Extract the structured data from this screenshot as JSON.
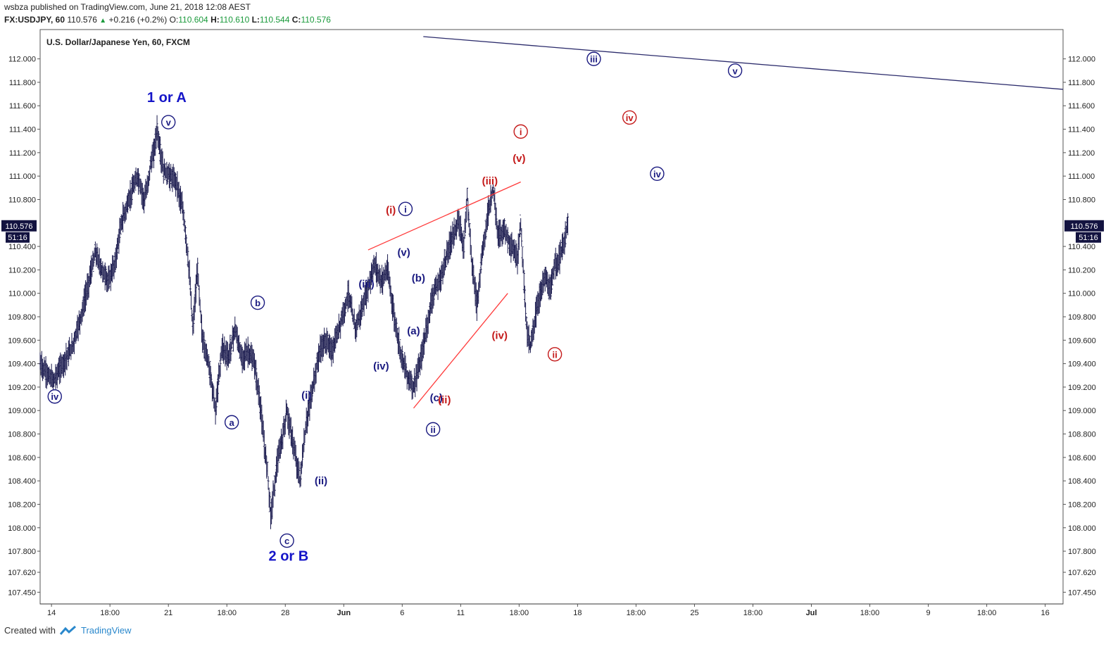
{
  "header": {
    "published": "wsbza published on TradingView.com, June 21, 2018 12:08 AEST",
    "symbol": "FX:USDJPY, 60",
    "last": "110.576",
    "change": "+0.216 (+0.2%)",
    "o_label": "O:",
    "o_val": "110.604",
    "h_label": "H:",
    "h_val": "110.610",
    "l_label": "L:",
    "l_val": "110.544",
    "c_label": "C:",
    "c_val": "110.576"
  },
  "footer": {
    "created_with": "Created with",
    "brand": "TradingView"
  },
  "colors": {
    "candle": "#1a1a4e",
    "blue_label": "#1515c8",
    "dark_label": "#1a1a80",
    "red_label": "#c41a1a",
    "red_line": "#ff3b3b",
    "navy_line": "#2b2b6b",
    "price_tag": "#131340"
  },
  "chart_data": {
    "type": "line",
    "title": "U.S. Dollar/Japanese Yen, 60, FXCM",
    "ylim": [
      107.35,
      112.25
    ],
    "y_ticks": [
      "112.000",
      "111.800",
      "111.600",
      "111.400",
      "111.200",
      "111.000",
      "110.800",
      "110.400",
      "110.200",
      "110.000",
      "109.800",
      "109.600",
      "109.400",
      "109.200",
      "109.000",
      "108.800",
      "108.600",
      "108.400",
      "108.200",
      "108.000",
      "107.800",
      "107.620",
      "107.450"
    ],
    "x_ticks": [
      "14",
      "18:00",
      "21",
      "18:00",
      "28",
      "Jun",
      "6",
      "11",
      "18:00",
      "18",
      "18:00",
      "25",
      "18:00",
      "Jul",
      "18:00",
      "9",
      "18:00",
      "16"
    ],
    "x_tick_index": [
      7,
      43,
      79,
      115,
      151,
      187,
      223,
      259,
      295,
      331,
      367,
      403,
      439,
      475,
      511,
      547,
      583,
      619
    ],
    "x_max": 630,
    "last_price": "110.576",
    "countdown": "51:16",
    "series": [
      {
        "points": [
          [
            0,
            109.4
          ],
          [
            5,
            109.3
          ],
          [
            8,
            109.25
          ],
          [
            14,
            109.4
          ],
          [
            20,
            109.55
          ],
          [
            26,
            109.85
          ],
          [
            30,
            110.1
          ],
          [
            34,
            110.35
          ],
          [
            38,
            110.2
          ],
          [
            42,
            110.1
          ],
          [
            46,
            110.25
          ],
          [
            50,
            110.6
          ],
          [
            56,
            110.85
          ],
          [
            60,
            111.0
          ],
          [
            64,
            110.8
          ],
          [
            66,
            110.9
          ],
          [
            68,
            111.1
          ],
          [
            70,
            111.2
          ],
          [
            72,
            111.4
          ],
          [
            74,
            111.2
          ],
          [
            76,
            111.05
          ],
          [
            80,
            111.0
          ],
          [
            84,
            110.95
          ],
          [
            88,
            110.7
          ],
          [
            90,
            110.45
          ],
          [
            92,
            110.15
          ],
          [
            94,
            109.7
          ],
          [
            97,
            110.2
          ],
          [
            100,
            109.6
          ],
          [
            104,
            109.4
          ],
          [
            108,
            109.0
          ],
          [
            112,
            109.55
          ],
          [
            116,
            109.45
          ],
          [
            120,
            109.7
          ],
          [
            124,
            109.45
          ],
          [
            128,
            109.5
          ],
          [
            132,
            109.4
          ],
          [
            136,
            109.0
          ],
          [
            138,
            108.7
          ],
          [
            140,
            108.5
          ],
          [
            142,
            108.1
          ],
          [
            146,
            108.55
          ],
          [
            149,
            108.75
          ],
          [
            152,
            109.0
          ],
          [
            156,
            108.7
          ],
          [
            160,
            108.4
          ],
          [
            164,
            108.9
          ],
          [
            168,
            109.2
          ],
          [
            172,
            109.5
          ],
          [
            176,
            109.6
          ],
          [
            180,
            109.5
          ],
          [
            186,
            109.8
          ],
          [
            190,
            110.0
          ],
          [
            194,
            109.7
          ],
          [
            198,
            109.85
          ],
          [
            202,
            110.05
          ],
          [
            206,
            110.25
          ],
          [
            210,
            110.1
          ],
          [
            214,
            110.2
          ],
          [
            218,
            109.8
          ],
          [
            222,
            109.5
          ],
          [
            226,
            109.3
          ],
          [
            230,
            109.2
          ],
          [
            234,
            109.4
          ],
          [
            238,
            109.7
          ],
          [
            242,
            110.0
          ],
          [
            246,
            110.1
          ],
          [
            250,
            110.3
          ],
          [
            254,
            110.5
          ],
          [
            258,
            110.6
          ],
          [
            261,
            110.4
          ],
          [
            263,
            110.85
          ],
          [
            266,
            110.25
          ],
          [
            269,
            109.9
          ],
          [
            272,
            110.3
          ],
          [
            276,
            110.7
          ],
          [
            279,
            110.9
          ],
          [
            282,
            110.5
          ],
          [
            286,
            110.55
          ],
          [
            290,
            110.4
          ],
          [
            294,
            110.3
          ],
          [
            296,
            110.6
          ],
          [
            298,
            110.1
          ],
          [
            300,
            109.65
          ],
          [
            302,
            109.55
          ],
          [
            305,
            109.8
          ],
          [
            308,
            110.0
          ],
          [
            311,
            110.15
          ],
          [
            314,
            110.0
          ],
          [
            317,
            110.25
          ],
          [
            320,
            110.3
          ],
          [
            323,
            110.45
          ],
          [
            325,
            110.6
          ]
        ]
      }
    ],
    "annotations": [
      {
        "text": "1 or A",
        "x": 78,
        "y": 111.63,
        "style": "big"
      },
      {
        "text": "2 or B",
        "x": 153,
        "y": 107.72,
        "style": "big"
      },
      {
        "text": "v",
        "x": 79,
        "y": 111.46,
        "style": "circle"
      },
      {
        "text": "iv",
        "x": 9,
        "y": 109.12,
        "style": "circle"
      },
      {
        "text": "a",
        "x": 118,
        "y": 108.9,
        "style": "circle"
      },
      {
        "text": "b",
        "x": 134,
        "y": 109.92,
        "style": "circle"
      },
      {
        "text": "c",
        "x": 152,
        "y": 107.89,
        "style": "circle"
      },
      {
        "text": "(i)",
        "x": 164,
        "y": 109.1,
        "style": "dark"
      },
      {
        "text": "(ii)",
        "x": 173,
        "y": 108.37,
        "style": "dark"
      },
      {
        "text": "(iii)",
        "x": 201,
        "y": 110.05,
        "style": "dark"
      },
      {
        "text": "(iv)",
        "x": 210,
        "y": 109.35,
        "style": "dark"
      },
      {
        "text": "(v)",
        "x": 224,
        "y": 110.32,
        "style": "dark"
      },
      {
        "text": "(b)",
        "x": 233,
        "y": 110.1,
        "style": "dark"
      },
      {
        "text": "(a)",
        "x": 230,
        "y": 109.65,
        "style": "dark"
      },
      {
        "text": "(c)",
        "x": 244,
        "y": 109.08,
        "style": "dark"
      },
      {
        "text": "i",
        "x": 225,
        "y": 110.72,
        "style": "circle"
      },
      {
        "text": "ii",
        "x": 242,
        "y": 108.84,
        "style": "circle"
      },
      {
        "text": "(i)",
        "x": 216,
        "y": 110.68,
        "style": "red"
      },
      {
        "text": "(ii)",
        "x": 249,
        "y": 109.06,
        "style": "red"
      },
      {
        "text": "(iii)",
        "x": 277,
        "y": 110.93,
        "style": "red"
      },
      {
        "text": "(iv)",
        "x": 283,
        "y": 109.61,
        "style": "red"
      },
      {
        "text": "(v)",
        "x": 295,
        "y": 111.12,
        "style": "red"
      },
      {
        "text": "i",
        "x": 296,
        "y": 111.38,
        "style": "circle-red"
      },
      {
        "text": "ii",
        "x": 317,
        "y": 109.48,
        "style": "circle-red"
      },
      {
        "text": "iii",
        "x": 341,
        "y": 112.0,
        "style": "circle"
      },
      {
        "text": "iv",
        "x": 363,
        "y": 111.5,
        "style": "circle-red"
      },
      {
        "text": "iv",
        "x": 380,
        "y": 111.02,
        "style": "circle"
      },
      {
        "text": "v",
        "x": 428,
        "y": 111.9,
        "style": "circle"
      }
    ],
    "lines": [
      {
        "color": "red",
        "points": [
          [
            202,
            110.37
          ],
          [
            296,
            110.95
          ]
        ]
      },
      {
        "color": "red",
        "points": [
          [
            230,
            109.02
          ],
          [
            288,
            110.0
          ]
        ]
      },
      {
        "color": "navy",
        "points": [
          [
            236,
            112.19
          ],
          [
            630,
            111.74
          ]
        ]
      }
    ]
  }
}
